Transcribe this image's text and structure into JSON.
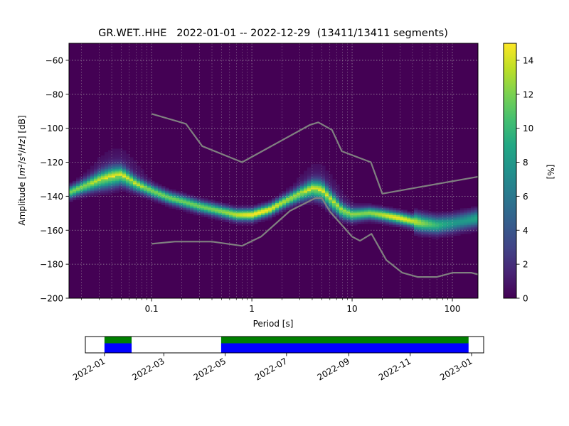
{
  "chart_data": [
    {
      "type": "heatmap",
      "title": "GR.WET..HHE   2022-01-01 -- 2022-12-29  (13411/13411 segments)",
      "xlabel": "Period [s]",
      "ylabel_parts": [
        "Amplitude [",
        "m",
        "2",
        "/",
        "s",
        "4",
        "/",
        "Hz",
        "] [dB]"
      ],
      "x_scale": "log",
      "xlim": [
        0.015,
        180
      ],
      "ylim": [
        -200,
        -50
      ],
      "x_ticks": [
        {
          "value": 0.1,
          "label": "0.1"
        },
        {
          "value": 1,
          "label": "1"
        },
        {
          "value": 10,
          "label": "10"
        },
        {
          "value": 100,
          "label": "100"
        }
      ],
      "y_ticks": [
        {
          "value": -60,
          "label": "−60"
        },
        {
          "value": -80,
          "label": "−80"
        },
        {
          "value": -100,
          "label": "−100"
        },
        {
          "value": -120,
          "label": "−120"
        },
        {
          "value": -140,
          "label": "−140"
        },
        {
          "value": -160,
          "label": "−160"
        },
        {
          "value": -180,
          "label": "−180"
        },
        {
          "value": -200,
          "label": "−200"
        }
      ],
      "grid": true,
      "colormap": "viridis",
      "background_color": "#440154",
      "colorbar": {
        "label": "[%]",
        "range": [
          0,
          15
        ],
        "ticks": [
          {
            "value": 0,
            "label": "0"
          },
          {
            "value": 2,
            "label": "2"
          },
          {
            "value": 4,
            "label": "4"
          },
          {
            "value": 6,
            "label": "6"
          },
          {
            "value": 8,
            "label": "8"
          },
          {
            "value": 10,
            "label": "10"
          },
          {
            "value": 12,
            "label": "12"
          },
          {
            "value": 14,
            "label": "14"
          }
        ]
      },
      "mode_ridge": [
        {
          "x": 0.015,
          "y": -138
        },
        {
          "x": 0.02,
          "y": -135
        },
        {
          "x": 0.03,
          "y": -131
        },
        {
          "x": 0.04,
          "y": -129
        },
        {
          "x": 0.05,
          "y": -128
        },
        {
          "x": 0.07,
          "y": -133
        },
        {
          "x": 0.1,
          "y": -137
        },
        {
          "x": 0.15,
          "y": -141
        },
        {
          "x": 0.2,
          "y": -143
        },
        {
          "x": 0.3,
          "y": -146
        },
        {
          "x": 0.5,
          "y": -149
        },
        {
          "x": 0.7,
          "y": -151
        },
        {
          "x": 1.0,
          "y": -151
        },
        {
          "x": 1.5,
          "y": -148
        },
        {
          "x": 2.0,
          "y": -144
        },
        {
          "x": 3.0,
          "y": -139
        },
        {
          "x": 4.0,
          "y": -136
        },
        {
          "x": 5.0,
          "y": -137
        },
        {
          "x": 6.0,
          "y": -142
        },
        {
          "x": 8.0,
          "y": -149
        },
        {
          "x": 10,
          "y": -151
        },
        {
          "x": 15,
          "y": -150
        },
        {
          "x": 20,
          "y": -151
        },
        {
          "x": 30,
          "y": -153
        },
        {
          "x": 50,
          "y": -156
        },
        {
          "x": 70,
          "y": -157
        },
        {
          "x": 100,
          "y": -156
        },
        {
          "x": 180,
          "y": -153
        }
      ],
      "series": [
        {
          "role": "high_noise_model",
          "color": "#808080",
          "points": [
            {
              "x": 0.1,
              "y": -91.5
            },
            {
              "x": 0.22,
              "y": -97.4
            },
            {
              "x": 0.32,
              "y": -110.5
            },
            {
              "x": 0.8,
              "y": -120
            },
            {
              "x": 3.8,
              "y": -98
            },
            {
              "x": 4.6,
              "y": -96.5
            },
            {
              "x": 6.3,
              "y": -101
            },
            {
              "x": 7.9,
              "y": -113.5
            },
            {
              "x": 15.4,
              "y": -120
            },
            {
              "x": 20,
              "y": -138.5
            },
            {
              "x": 180,
              "y": -128.5
            }
          ]
        },
        {
          "role": "low_noise_model",
          "color": "#808080",
          "points": [
            {
              "x": 0.1,
              "y": -168
            },
            {
              "x": 0.17,
              "y": -166.7
            },
            {
              "x": 0.4,
              "y": -166.7
            },
            {
              "x": 0.8,
              "y": -169.2
            },
            {
              "x": 1.24,
              "y": -163.7
            },
            {
              "x": 2.4,
              "y": -148.6
            },
            {
              "x": 4.3,
              "y": -141.1
            },
            {
              "x": 5.0,
              "y": -141.1
            },
            {
              "x": 6.0,
              "y": -149
            },
            {
              "x": 10,
              "y": -163.8
            },
            {
              "x": 12,
              "y": -166.2
            },
            {
              "x": 15.6,
              "y": -162.1
            },
            {
              "x": 21.9,
              "y": -177.5
            },
            {
              "x": 31.6,
              "y": -185
            },
            {
              "x": 45,
              "y": -187.5
            },
            {
              "x": 70,
              "y": -187.5
            },
            {
              "x": 101,
              "y": -185
            },
            {
              "x": 154,
              "y": -185
            },
            {
              "x": 180,
              "y": -186
            }
          ]
        }
      ]
    },
    {
      "type": "timeline",
      "time_range": [
        "2021-12-13",
        "2023-01-13"
      ],
      "x_ticks": [
        {
          "value": "2022-01-01",
          "label": "2022-01"
        },
        {
          "value": "2022-03-01",
          "label": "2022-03"
        },
        {
          "value": "2022-05-01",
          "label": "2022-05"
        },
        {
          "value": "2022-07-01",
          "label": "2022-07"
        },
        {
          "value": "2022-09-01",
          "label": "2022-09"
        },
        {
          "value": "2022-11-01",
          "label": "2022-11"
        },
        {
          "value": "2023-01-01",
          "label": "2023-01"
        }
      ],
      "coverage": [
        {
          "start": "2022-01-01",
          "end": "2022-01-28",
          "top_color": "#008000",
          "bottom_color": "#0000ff"
        },
        {
          "start": "2022-04-27",
          "end": "2022-12-29",
          "top_color": "#008000",
          "bottom_color": "#0000ff"
        }
      ]
    }
  ]
}
